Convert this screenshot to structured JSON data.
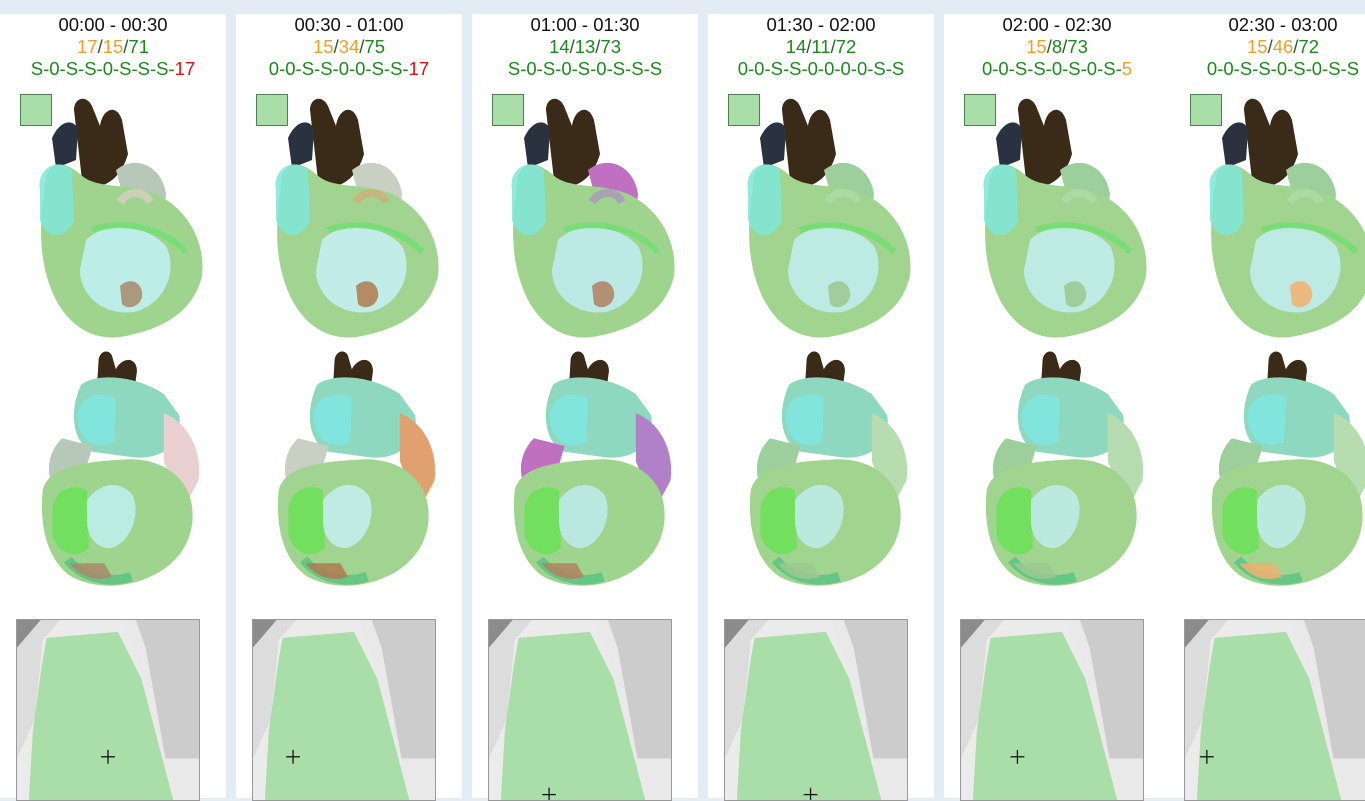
{
  "colors": {
    "good": "#1b8a1b",
    "warn": "#f0a020",
    "bad": "#e01010",
    "legend": "#a9dea9"
  },
  "panels": [
    {
      "time": "00:00 - 00:30",
      "counts": [
        {
          "value": "17",
          "color": "warn"
        },
        {
          "value": "15",
          "color": "warn"
        },
        {
          "value": "71",
          "color": "good"
        }
      ],
      "sequence": [
        {
          "t": "S-0-S-S-0-S-S-S-",
          "color": "good"
        },
        {
          "t": "17",
          "color": "bad"
        }
      ],
      "tint": "normal",
      "cross": [
        0.5,
        0.76
      ]
    },
    {
      "time": "00:30 - 01:00",
      "counts": [
        {
          "value": "15",
          "color": "warn"
        },
        {
          "value": "34",
          "color": "warn"
        },
        {
          "value": "75",
          "color": "good"
        }
      ],
      "sequence": [
        {
          "t": "0-0-S-S-0-0-S-S-",
          "color": "good"
        },
        {
          "t": "17",
          "color": "bad"
        }
      ],
      "tint": "orange",
      "cross": [
        0.22,
        0.76
      ]
    },
    {
      "time": "01:00 - 01:30",
      "counts": [
        {
          "value": "14",
          "color": "good"
        },
        {
          "value": "13",
          "color": "good"
        },
        {
          "value": "73",
          "color": "good"
        }
      ],
      "sequence": [
        {
          "t": "S-0-S-0-S-0-S-S-S",
          "color": "good"
        }
      ],
      "tint": "purple",
      "cross": [
        0.33,
        0.97
      ]
    },
    {
      "time": "01:30 - 02:00",
      "counts": [
        {
          "value": "14",
          "color": "good"
        },
        {
          "value": "11",
          "color": "good"
        },
        {
          "value": "72",
          "color": "good"
        }
      ],
      "sequence": [
        {
          "t": "0-0-S-S-0-0-0-0-S-S",
          "color": "good"
        }
      ],
      "tint": "muted",
      "cross": [
        0.47,
        0.97
      ]
    },
    {
      "time": "02:00 - 02:30",
      "counts": [
        {
          "value": "15",
          "color": "warn"
        },
        {
          "value": "8",
          "color": "good"
        },
        {
          "value": "73",
          "color": "good"
        }
      ],
      "sequence": [
        {
          "t": "0-0-S-S-0-S-0-S-",
          "color": "good"
        },
        {
          "t": "5",
          "color": "warn"
        }
      ],
      "tint": "muted",
      "cross": [
        0.31,
        0.76
      ]
    },
    {
      "time": "02:30 - 03:00",
      "counts": [
        {
          "value": "15",
          "color": "warn"
        },
        {
          "value": "46",
          "color": "warn"
        },
        {
          "value": "72",
          "color": "good"
        }
      ],
      "sequence": [
        {
          "t": "0-0-S-S-0-S-0-S-S",
          "color": "good"
        }
      ],
      "tint": "apex",
      "cross": [
        0.12,
        0.76
      ]
    }
  ]
}
